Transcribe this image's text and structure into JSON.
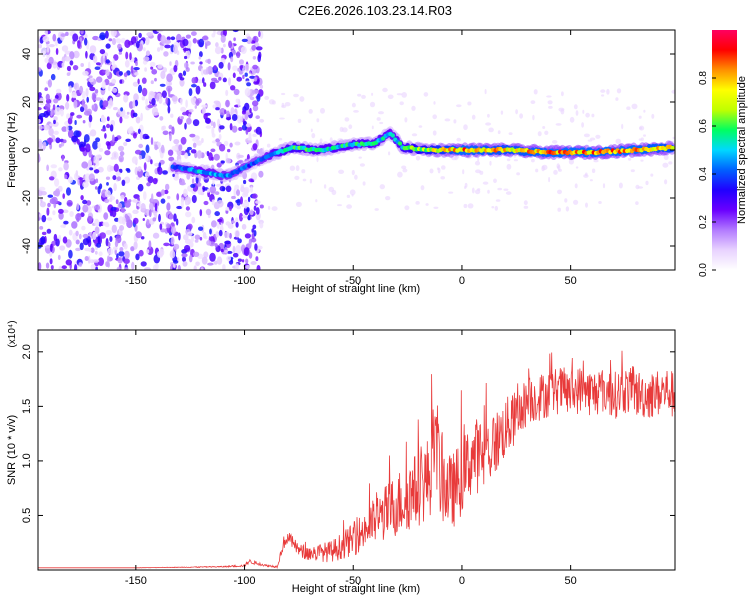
{
  "title": "C2E6.2026.103.23.14.R03",
  "chart_data": [
    {
      "type": "heatmap",
      "xlabel": "Height of straight line (km)",
      "ylabel": "Frequency (Hz)",
      "xlim": [
        -195,
        98
      ],
      "ylim": [
        -50,
        50
      ],
      "x_ticks": [
        -150,
        -100,
        -50,
        0,
        50
      ],
      "y_ticks": [
        -40,
        -20,
        0,
        20,
        40
      ],
      "colorbar": {
        "label": "Normalized spectral amplitude",
        "range": [
          0,
          1
        ],
        "ticks": [
          "0.0",
          "0.2",
          "0.4",
          "0.6",
          "0.8"
        ],
        "colors": [
          "#ffffff",
          "#e8d2ff",
          "#b27aff",
          "#6a00ff",
          "#2000ff",
          "#0060ff",
          "#00d8ff",
          "#00ff60",
          "#c0ff00",
          "#ffff00",
          "#ff9000",
          "#ff0000",
          "#ff0060"
        ]
      },
      "noise_region_x": [
        -195,
        -92
      ],
      "ridge": [
        {
          "x": -133,
          "f": -7,
          "a": 0.4
        },
        {
          "x": -120,
          "f": -9,
          "a": 0.5
        },
        {
          "x": -108,
          "f": -11,
          "a": 0.45
        },
        {
          "x": -95,
          "f": -5,
          "a": 0.4
        },
        {
          "x": -88,
          "f": -2,
          "a": 0.5
        },
        {
          "x": -78,
          "f": 1,
          "a": 0.6
        },
        {
          "x": -65,
          "f": 0,
          "a": 0.55
        },
        {
          "x": -52,
          "f": 2,
          "a": 0.55
        },
        {
          "x": -40,
          "f": 3,
          "a": 0.55
        },
        {
          "x": -33,
          "f": 7,
          "a": 0.5
        },
        {
          "x": -27,
          "f": 1,
          "a": 0.6
        },
        {
          "x": -15,
          "f": 0,
          "a": 0.7
        },
        {
          "x": 0,
          "f": 0,
          "a": 0.85
        },
        {
          "x": 20,
          "f": 0,
          "a": 0.8
        },
        {
          "x": 40,
          "f": -1,
          "a": 0.85
        },
        {
          "x": 60,
          "f": -1,
          "a": 0.85
        },
        {
          "x": 80,
          "f": 0,
          "a": 0.85
        },
        {
          "x": 97,
          "f": 1,
          "a": 0.8
        }
      ]
    },
    {
      "type": "line",
      "xlabel": "Height of straight line (km)",
      "ylabel": "SNR (10 * v/v)",
      "y_multiplier": "(x10⁴)",
      "xlim": [
        -195,
        98
      ],
      "ylim": [
        0,
        2.2
      ],
      "x_ticks": [
        -150,
        -100,
        -50,
        0,
        50
      ],
      "y_ticks": [
        "0.5",
        "1.0",
        "1.5",
        "2.0"
      ],
      "color": "#e83a3a",
      "series": [
        {
          "x": [
            -195,
            -150,
            -110,
            -100,
            -98,
            -90,
            -85,
            -82,
            -80,
            -75,
            -70,
            -60,
            -50,
            -40,
            -30,
            -20,
            -15,
            -12,
            -10,
            -5,
            0,
            5,
            10,
            15,
            20,
            25,
            30,
            35,
            40,
            45,
            50,
            55,
            60,
            65,
            70,
            75,
            80,
            85,
            90,
            95,
            97
          ],
          "y": [
            0.02,
            0.02,
            0.03,
            0.04,
            0.08,
            0.04,
            0.03,
            0.25,
            0.3,
            0.18,
            0.15,
            0.17,
            0.28,
            0.45,
            0.6,
            0.75,
            0.85,
            1.25,
            0.85,
            0.7,
            0.85,
            1.05,
            1.05,
            1.15,
            1.3,
            1.4,
            1.55,
            1.58,
            1.62,
            1.65,
            1.62,
            1.66,
            1.62,
            1.65,
            1.6,
            1.65,
            1.62,
            1.6,
            1.62,
            1.65,
            1.6
          ],
          "noise": [
            0,
            0,
            0.005,
            0.01,
            0.02,
            0.01,
            0.01,
            0.06,
            0.06,
            0.06,
            0.07,
            0.1,
            0.15,
            0.22,
            0.3,
            0.35,
            0.4,
            0.45,
            0.4,
            0.35,
            0.35,
            0.35,
            0.35,
            0.3,
            0.28,
            0.25,
            0.22,
            0.22,
            0.22,
            0.22,
            0.22,
            0.22,
            0.22,
            0.22,
            0.22,
            0.22,
            0.22,
            0.22,
            0.22,
            0.22,
            0.22
          ]
        }
      ]
    }
  ]
}
